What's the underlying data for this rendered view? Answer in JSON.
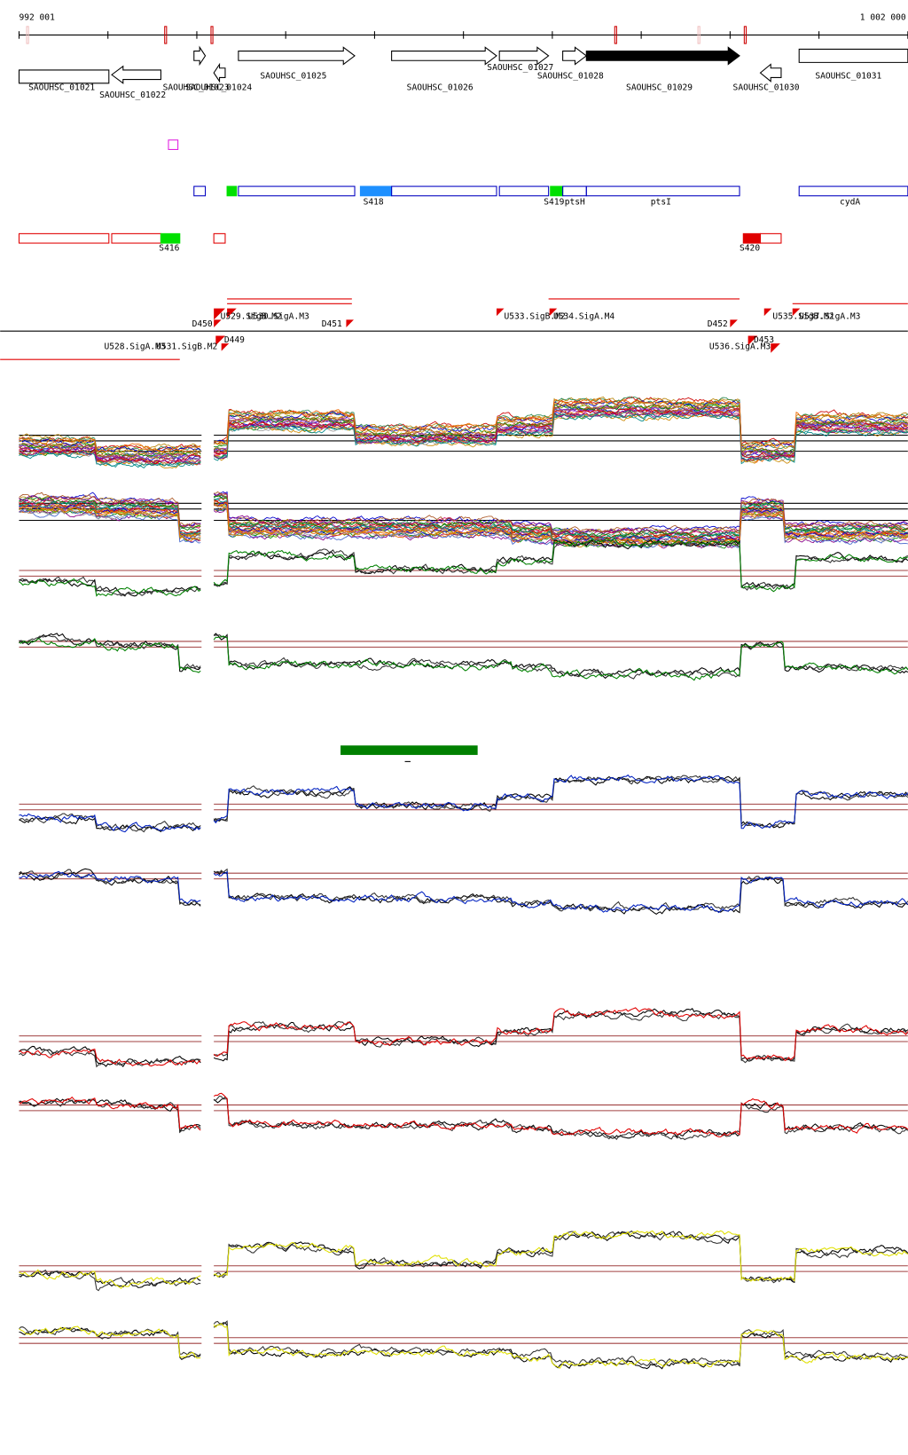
{
  "ruler": {
    "start": "992 001",
    "end": "1 002 000"
  },
  "genes": [
    "SAOUHSC_01021",
    "SAOUHSC_01022",
    "SAOUHSC_01023",
    "SAOUHSC_01024",
    "SAOUHSC_01025",
    "SAOUHSC_01026",
    "SAOUHSC_01027",
    "SAOUHSC_01028",
    "SAOUHSC_01029",
    "SAOUHSC_01030",
    "SAOUHSC_01031"
  ],
  "features": [
    "S418",
    "S419",
    "ptsH",
    "ptsI",
    "cydA",
    "S416",
    "S420"
  ],
  "transcripts": [
    "D450",
    "D449",
    "D451",
    "D452",
    "D453",
    "U529.SigB.M2",
    "U530.SigA.M3",
    "U533.SigB.M2",
    "U534.SigA.M4",
    "U535.SigB.M2",
    "U537.SigA.M3",
    "U528.SigA.M3",
    "U531.SigB.M2",
    "U536.SigA.M3"
  ]
}
